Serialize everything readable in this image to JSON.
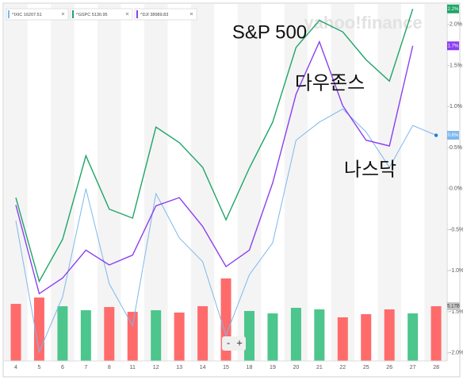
{
  "chart_data": {
    "type": "line",
    "watermark": "yahoo!finance",
    "annotations": [
      "S&P 500",
      "다우존스",
      "나스닥"
    ],
    "zoom_controls": [
      "-",
      "+"
    ],
    "categories": [
      "4",
      "5",
      "6",
      "7",
      "8",
      "11",
      "12",
      "13",
      "14",
      "15",
      "18",
      "19",
      "20",
      "21",
      "22",
      "25",
      "26",
      "27",
      "28"
    ],
    "series": [
      {
        "name": "^IXIC 16207.51",
        "color": "#7db8ee",
        "badge": "0.6%",
        "values": [
          -0.39,
          -1.99,
          -1.32,
          0.0,
          -1.16,
          -1.67,
          -0.06,
          -0.6,
          -0.89,
          -1.79,
          -1.05,
          -0.66,
          0.59,
          0.81,
          0.97,
          0.69,
          0.26,
          0.77,
          0.65
        ]
      },
      {
        "name": "^GSPC 5130.95",
        "color": "#1ea467",
        "badge": "2.2%",
        "values": [
          -0.11,
          -1.13,
          -0.62,
          0.4,
          -0.25,
          -0.36,
          0.75,
          0.56,
          0.26,
          -0.38,
          0.25,
          0.81,
          1.72,
          2.05,
          1.91,
          1.57,
          1.31,
          2.19,
          null
        ]
      },
      {
        "name": "^DJI 38989.83",
        "color": "#8b3ff0",
        "badge": "1.7%",
        "values": [
          -0.2,
          -1.28,
          -1.09,
          -0.75,
          -0.93,
          -0.81,
          -0.21,
          -0.11,
          -0.46,
          -0.95,
          -0.75,
          0.07,
          1.15,
          1.79,
          1.01,
          0.59,
          0.52,
          1.74,
          null
        ]
      }
    ],
    "volume": {
      "values": [
        5.39,
        5.99,
        5.17,
        4.79,
        5.09,
        4.64,
        4.79,
        4.57,
        5.17,
        7.79,
        4.72,
        4.49,
        5.02,
        4.87,
        4.12,
        4.42,
        4.87,
        4.49,
        5.17
      ],
      "directions": [
        "down",
        "down",
        "up",
        "up",
        "down",
        "down",
        "up",
        "down",
        "down",
        "down",
        "up",
        "up",
        "up",
        "up",
        "down",
        "down",
        "down",
        "up",
        "down"
      ],
      "up_color": "#4cc68c",
      "down_color": "#ff6b6b",
      "vlim": [
        0,
        10
      ],
      "badge": "5.17B"
    },
    "ylim": [
      -2.1,
      2.25
    ],
    "yticks": [
      {
        "value": 2.0,
        "label": "2.0%"
      },
      {
        "value": 1.5,
        "label": "1.5%"
      },
      {
        "value": 1.0,
        "label": "1.0%"
      },
      {
        "value": 0.5,
        "label": "0.5%"
      },
      {
        "value": 0,
        "label": "0.0%"
      },
      {
        "value": -0.5,
        "label": "-0.5%"
      },
      {
        "value": -1.0,
        "label": "-1.0%"
      },
      {
        "value": -1.5,
        "label": "-1.5%"
      },
      {
        "value": -2.0,
        "label": "-2.0%"
      }
    ]
  }
}
